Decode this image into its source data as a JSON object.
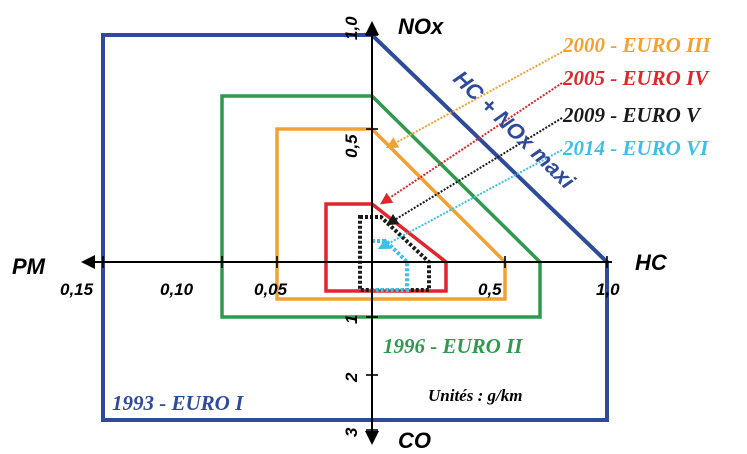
{
  "axes": {
    "nox": "NOx",
    "hc": "HC",
    "pm": "PM",
    "co": "CO"
  },
  "ticks": {
    "pm_015": "0,15",
    "pm_010": "0,10",
    "pm_005": "0,05",
    "hc_05": "0,5",
    "hc_10": "1,0",
    "nox_05": "0,5",
    "nox_10": "1,0",
    "co_1": "1",
    "co_2": "2",
    "co_3": "3"
  },
  "annotations": {
    "hc_nox_maxi": "HC + NOx maxi",
    "units": "Unités : g/km"
  },
  "standards": [
    {
      "label": "1993 - EURO I",
      "color": "#2e4a9a"
    },
    {
      "label": "1996 - EURO II",
      "color": "#2f9a4e"
    },
    {
      "label": "2000 - EURO III",
      "color": "#f5a033"
    },
    {
      "label": "2005 - EURO IV",
      "color": "#e0262b"
    },
    {
      "label": "2009 - EURO V",
      "color": "#1a1a1a"
    },
    {
      "label": "2014 - EURO VI",
      "color": "#3cc0e8"
    }
  ]
}
